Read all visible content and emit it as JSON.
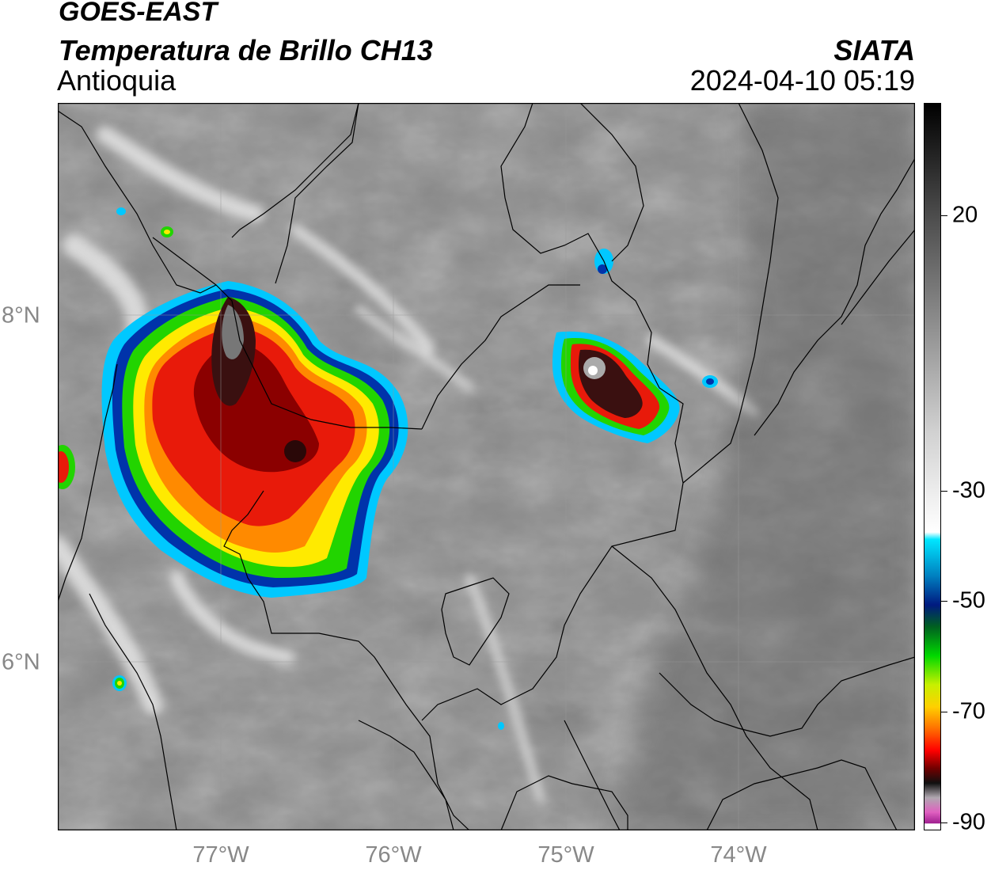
{
  "header": {
    "satellite": "GOES-EAST",
    "product": "Temperatura de Brillo CH13",
    "region": "Antioquia",
    "organization": "SIATA",
    "datetime": "2024-04-10 05:19"
  },
  "map": {
    "lon_labels": [
      "77°W",
      "76°W",
      "75°W",
      "74°W"
    ],
    "lat_labels": [
      "8°N",
      "6°N"
    ],
    "storm_colors": {
      "cold_core": "#2a1010",
      "dark_red": "#8b0000",
      "red": "#e81a0a",
      "orange": "#ff8a00",
      "yellow": "#ffea00",
      "green": "#22d400",
      "blue": "#0033aa",
      "cyan": "#00c8ff"
    }
  },
  "colorbar": {
    "tick_labels": [
      "20",
      "-30",
      "-50",
      "-70",
      "-90"
    ]
  }
}
